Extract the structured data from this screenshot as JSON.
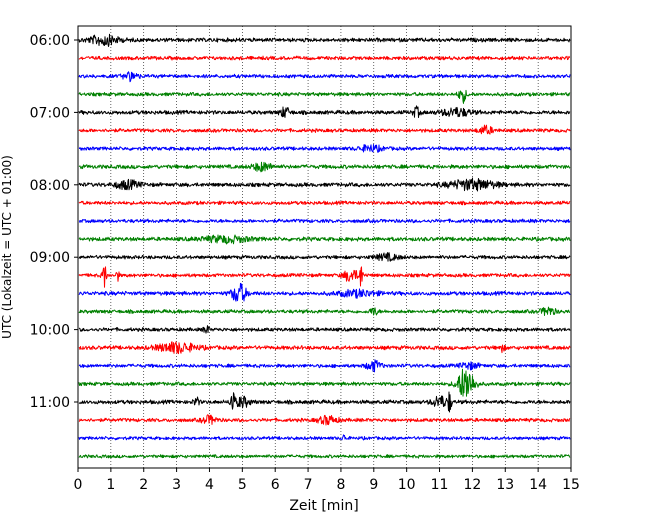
{
  "chart_data": {
    "type": "line",
    "title": "",
    "xlabel": "Zeit  [min]",
    "ylabel": "UTC (Lokalzeit = UTC + 01:00)",
    "xlim": [
      0,
      15
    ],
    "x_ticks": [
      "0",
      "1",
      "2",
      "3",
      "4",
      "5",
      "6",
      "7",
      "8",
      "9",
      "10",
      "11",
      "12",
      "13",
      "14",
      "15"
    ],
    "y_ticks": [
      {
        "label": "06:00",
        "trace": 0
      },
      {
        "label": "07:00",
        "trace": 4
      },
      {
        "label": "08:00",
        "trace": 8
      },
      {
        "label": "09:00",
        "trace": 12
      },
      {
        "label": "10:00",
        "trace": 16
      },
      {
        "label": "11:00",
        "trace": 20
      }
    ],
    "grid": {
      "vertical": true,
      "style": "dotted"
    },
    "trace_colors": [
      "#000000",
      "#ff0000",
      "#0000ff",
      "#008000"
    ],
    "traces": [
      {
        "start": "06:00",
        "color": "#000000",
        "noise": 2.2,
        "events": [
          {
            "x": 0.8,
            "amp": 5,
            "width": 0.6
          }
        ]
      },
      {
        "start": "06:15",
        "color": "#ff0000",
        "noise": 2.0,
        "events": []
      },
      {
        "start": "06:30",
        "color": "#0000ff",
        "noise": 2.0,
        "events": [
          {
            "x": 1.6,
            "amp": 4,
            "width": 0.3
          }
        ]
      },
      {
        "start": "06:45",
        "color": "#008000",
        "noise": 2.0,
        "events": [
          {
            "x": 11.7,
            "amp": 8,
            "width": 0.15
          }
        ]
      },
      {
        "start": "07:00",
        "color": "#000000",
        "noise": 2.2,
        "events": [
          {
            "x": 6.3,
            "amp": 5,
            "width": 0.2
          },
          {
            "x": 10.3,
            "amp": 5,
            "width": 0.15
          },
          {
            "x": 11.5,
            "amp": 4,
            "width": 0.6
          }
        ]
      },
      {
        "start": "07:15",
        "color": "#ff0000",
        "noise": 2.0,
        "events": [
          {
            "x": 12.4,
            "amp": 4,
            "width": 0.3
          }
        ]
      },
      {
        "start": "07:30",
        "color": "#0000ff",
        "noise": 2.0,
        "events": [
          {
            "x": 8.9,
            "amp": 3,
            "width": 0.5
          }
        ]
      },
      {
        "start": "07:45",
        "color": "#008000",
        "noise": 2.2,
        "events": [
          {
            "x": 5.6,
            "amp": 4,
            "width": 0.4
          }
        ]
      },
      {
        "start": "08:00",
        "color": "#000000",
        "noise": 2.2,
        "events": [
          {
            "x": 1.5,
            "amp": 4,
            "width": 0.5
          },
          {
            "x": 12.0,
            "amp": 5,
            "width": 1.0
          }
        ]
      },
      {
        "start": "08:15",
        "color": "#ff0000",
        "noise": 2.0,
        "events": []
      },
      {
        "start": "08:30",
        "color": "#0000ff",
        "noise": 2.0,
        "events": []
      },
      {
        "start": "08:45",
        "color": "#008000",
        "noise": 2.2,
        "events": [
          {
            "x": 4.5,
            "amp": 3,
            "width": 1.0
          }
        ]
      },
      {
        "start": "09:00",
        "color": "#000000",
        "noise": 2.0,
        "events": [
          {
            "x": 9.4,
            "amp": 3,
            "width": 0.5
          }
        ]
      },
      {
        "start": "09:15",
        "color": "#ff0000",
        "noise": 2.0,
        "events": [
          {
            "x": 0.8,
            "amp": 13,
            "width": 0.08
          },
          {
            "x": 1.2,
            "amp": 6,
            "width": 0.06
          },
          {
            "x": 8.3,
            "amp": 6,
            "width": 0.3
          },
          {
            "x": 8.6,
            "amp": 12,
            "width": 0.08
          }
        ]
      },
      {
        "start": "09:30",
        "color": "#0000ff",
        "noise": 2.2,
        "events": [
          {
            "x": 4.9,
            "amp": 10,
            "width": 0.3
          },
          {
            "x": 8.5,
            "amp": 3,
            "width": 0.8
          }
        ]
      },
      {
        "start": "09:45",
        "color": "#008000",
        "noise": 2.0,
        "events": [
          {
            "x": 9.0,
            "amp": 4,
            "width": 0.15
          },
          {
            "x": 14.3,
            "amp": 4,
            "width": 0.3
          }
        ]
      },
      {
        "start": "10:00",
        "color": "#000000",
        "noise": 2.0,
        "events": [
          {
            "x": 3.9,
            "amp": 5,
            "width": 0.1
          }
        ]
      },
      {
        "start": "10:15",
        "color": "#ff0000",
        "noise": 2.2,
        "events": [
          {
            "x": 3.0,
            "amp": 5,
            "width": 0.8
          },
          {
            "x": 12.9,
            "amp": 4,
            "width": 0.1
          }
        ]
      },
      {
        "start": "10:30",
        "color": "#0000ff",
        "noise": 2.0,
        "events": [
          {
            "x": 9.0,
            "amp": 5,
            "width": 0.3
          },
          {
            "x": 11.9,
            "amp": 3,
            "width": 0.4
          }
        ]
      },
      {
        "start": "10:45",
        "color": "#008000",
        "noise": 2.0,
        "events": [
          {
            "x": 11.8,
            "amp": 17,
            "width": 0.35
          }
        ]
      },
      {
        "start": "11:00",
        "color": "#000000",
        "noise": 2.2,
        "events": [
          {
            "x": 3.6,
            "amp": 5,
            "width": 0.1
          },
          {
            "x": 4.7,
            "amp": 14,
            "width": 0.08
          },
          {
            "x": 5.0,
            "amp": 5,
            "width": 0.3
          },
          {
            "x": 11.0,
            "amp": 6,
            "width": 0.3
          },
          {
            "x": 11.3,
            "amp": 10,
            "width": 0.08
          }
        ]
      },
      {
        "start": "11:15",
        "color": "#ff0000",
        "noise": 2.0,
        "events": [
          {
            "x": 4.0,
            "amp": 4,
            "width": 0.3
          },
          {
            "x": 7.6,
            "amp": 4,
            "width": 0.4
          }
        ]
      },
      {
        "start": "11:30",
        "color": "#0000ff",
        "noise": 1.8,
        "events": [
          {
            "x": 8.1,
            "amp": 3,
            "width": 0.1
          }
        ]
      },
      {
        "start": "11:45",
        "color": "#008000",
        "noise": 1.8,
        "events": []
      }
    ]
  }
}
